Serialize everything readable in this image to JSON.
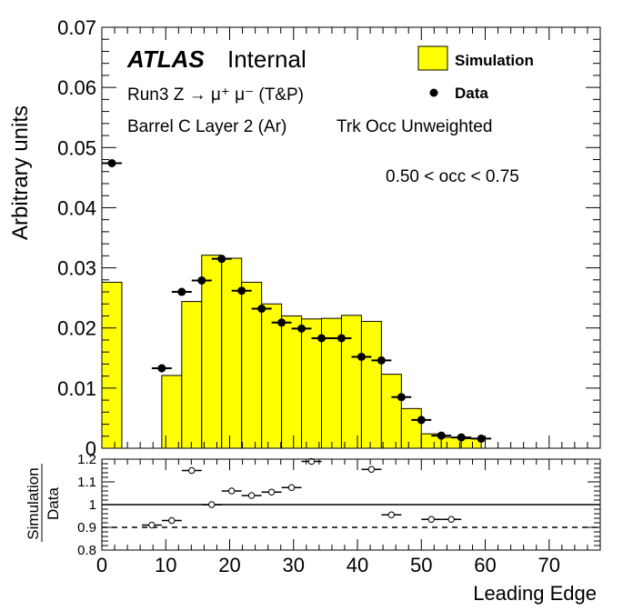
{
  "chart_data": [
    {
      "type": "bar",
      "ylabel": "Arbitrary units",
      "xlim": [
        0,
        78
      ],
      "ylim": [
        0,
        0.07
      ],
      "yticks": [
        "0",
        "0.01",
        "0.02",
        "0.03",
        "0.04",
        "0.05",
        "0.06",
        "0.07"
      ],
      "annotations": {
        "atlas": "ATLAS",
        "internal": "Internal",
        "line1": "Run3 Z → μ⁺ μ⁻ (T&P)",
        "line2_a": "Barrel C Layer 2 (Ar)",
        "line2_b": "Trk Occ Unweighted",
        "range": "0.50 < occ < 0.75"
      },
      "legend": {
        "placement": "top-right",
        "simulation": "Simulation",
        "data": "Data",
        "sim_color": "#ffff00"
      },
      "bin_edges": [
        0,
        3.125,
        6.25,
        9.375,
        12.5,
        15.625,
        18.75,
        21.875,
        25,
        28.125,
        31.25,
        34.375,
        37.5,
        40.625,
        43.75,
        46.875,
        50,
        53.125,
        56.25,
        59.375,
        62.5,
        65.625,
        68.75,
        71.875,
        75,
        78.125
      ],
      "series": [
        {
          "name": "Simulation",
          "style": "filled-histogram",
          "values": [
            0.0276,
            0,
            0,
            0.0121,
            0.0244,
            0.0321,
            0.0316,
            0.0276,
            0.024,
            0.022,
            0.0215,
            0.0216,
            0.0221,
            0.0211,
            0.0123,
            0.0066,
            0.0024,
            0.0018,
            0.0016,
            0,
            0,
            0,
            0,
            0,
            0
          ]
        },
        {
          "name": "Data",
          "style": "points",
          "x": [
            1.5625,
            9.375,
            12.5,
            15.625,
            18.75,
            21.875,
            25,
            28.125,
            31.25,
            34.375,
            37.5,
            40.625,
            43.75,
            46.875,
            50,
            53.125,
            56.25,
            59.375
          ],
          "values": [
            0.0474,
            0.0133,
            0.026,
            0.0279,
            0.0315,
            0.0262,
            0.0232,
            0.0209,
            0.0199,
            0.0183,
            0.0183,
            0.0152,
            0.0146,
            0.0085,
            0.0047,
            0.0021,
            0.0018,
            0.0016
          ]
        }
      ]
    },
    {
      "type": "scatter",
      "ylabel_top": "Simulation",
      "ylabel_bottom": "Data",
      "xlabel": "Leading Edge",
      "xlim": [
        0,
        78
      ],
      "ylim": [
        0.8,
        1.2
      ],
      "yticks": [
        "0.8",
        "0.9",
        "1",
        "1.1",
        "1.2"
      ],
      "xticks": [
        "0",
        "10",
        "20",
        "30",
        "40",
        "50",
        "60",
        "70"
      ],
      "reference_lines": [
        1.0,
        0.9
      ],
      "series": [
        {
          "name": "Simulation/Data",
          "x": [
            7.8125,
            10.9375,
            14.0625,
            17.1875,
            20.3125,
            23.4375,
            26.5625,
            29.6875,
            32.8125,
            42.1875,
            45.3125,
            51.5625,
            54.6875
          ],
          "values": [
            0.91,
            0.93,
            1.15,
            1.0,
            1.06,
            1.04,
            1.055,
            1.075,
            1.19,
            1.155,
            0.955,
            0.935,
            0.935
          ]
        }
      ]
    }
  ]
}
